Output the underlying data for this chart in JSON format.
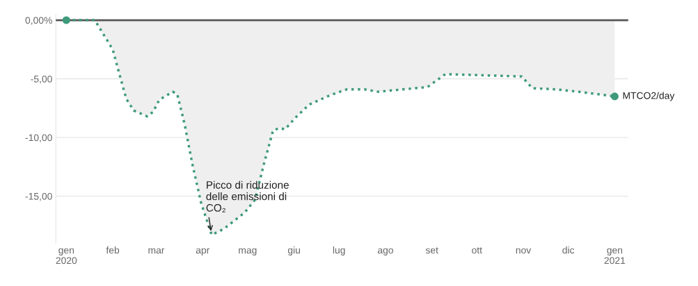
{
  "chart_data": {
    "type": "area",
    "x": [
      "2020-01-01",
      "2020-01-20",
      "2020-02-01",
      "2020-02-05",
      "2020-02-10",
      "2020-02-15",
      "2020-02-24",
      "2020-02-28",
      "2020-03-03",
      "2020-03-12",
      "2020-03-15",
      "2020-03-20",
      "2020-03-25",
      "2020-03-31",
      "2020-04-07",
      "2020-04-15",
      "2020-04-29",
      "2020-05-06",
      "2020-05-12",
      "2020-05-18",
      "2020-05-22",
      "2020-05-26",
      "2020-06-02",
      "2020-06-11",
      "2020-06-25",
      "2020-07-06",
      "2020-07-18",
      "2020-07-27",
      "2020-08-29",
      "2020-09-10",
      "2020-10-31",
      "2020-11-07",
      "2020-11-23",
      "2020-12-08",
      "2021-01-01"
    ],
    "series": [
      {
        "name": "MTCO2/day",
        "color": "#3f9a7c",
        "values": [
          0,
          0,
          -2.5,
          -4.4,
          -6.7,
          -7.7,
          -8.2,
          -7.8,
          -6.8,
          -6.1,
          -6.3,
          -8.9,
          -12.2,
          -15.6,
          -18.3,
          -17.8,
          -16.4,
          -15.3,
          -12.2,
          -9.4,
          -9.2,
          -9.3,
          -8.3,
          -7.2,
          -6.4,
          -5.9,
          -5.9,
          -6.1,
          -5.7,
          -4.6,
          -4.8,
          -5.8,
          -5.9,
          -6.1,
          -6.5
        ]
      }
    ],
    "xlim": [
      "2019-12-25",
      "2021-01-10"
    ],
    "xticks": [
      {
        "value": "2020-01-01",
        "label": "gen\n2020"
      },
      {
        "value": "2020-02-01",
        "label": "feb"
      },
      {
        "value": "2020-03-01",
        "label": "mar"
      },
      {
        "value": "2020-04-01",
        "label": "apr"
      },
      {
        "value": "2020-05-01",
        "label": "mag"
      },
      {
        "value": "2020-06-01",
        "label": "giu"
      },
      {
        "value": "2020-07-01",
        "label": "lug"
      },
      {
        "value": "2020-08-01",
        "label": "ago"
      },
      {
        "value": "2020-09-01",
        "label": "set"
      },
      {
        "value": "2020-10-01",
        "label": "ott"
      },
      {
        "value": "2020-11-01",
        "label": "nov"
      },
      {
        "value": "2020-12-01",
        "label": "dic"
      },
      {
        "value": "2021-01-01",
        "label": "gen\n2021"
      }
    ],
    "ylim": [
      -19,
      0.5
    ],
    "yticks": [
      {
        "value": 0,
        "label": "0,00%"
      },
      {
        "value": -5,
        "label": "-5,00"
      },
      {
        "value": -10,
        "label": "-10,00"
      },
      {
        "value": -15,
        "label": "-15,00"
      }
    ],
    "ref_lines": [
      {
        "axis": "y",
        "value": 0,
        "label": null,
        "color": "#555555"
      }
    ],
    "grid": "y",
    "line_style": "dotted",
    "annotations": [
      {
        "text": "Picco di riduzione\ndelle emissioni di\nCO₂",
        "x": "2020-04-07",
        "y": -18.3
      }
    ]
  }
}
